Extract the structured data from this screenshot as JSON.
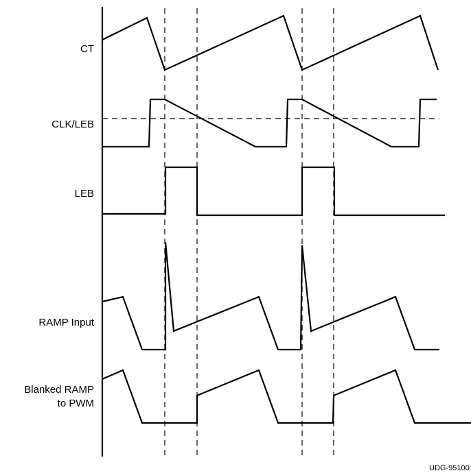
{
  "diagram": {
    "signals": [
      {
        "id": "ct",
        "label": [
          "CT"
        ]
      },
      {
        "id": "clk-leb",
        "label": [
          "CLK/LEB"
        ]
      },
      {
        "id": "leb",
        "label": [
          "LEB"
        ]
      },
      {
        "id": "ramp-input",
        "label": [
          "RAMP Input"
        ]
      },
      {
        "id": "blanked-ramp",
        "label": [
          "Blanked RAMP",
          "to PWM"
        ]
      }
    ],
    "figure_id": "UDG-95100"
  }
}
